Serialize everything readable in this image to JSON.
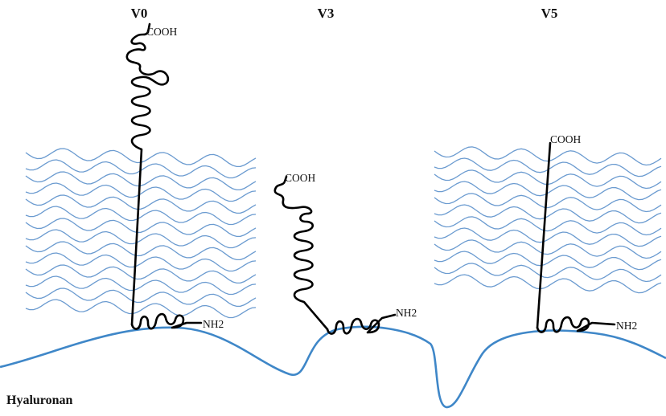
{
  "variants": [
    {
      "name": "V0",
      "c_terminus": "COOH",
      "n_terminus": "NH2",
      "gag_chains": 14
    },
    {
      "name": "V3",
      "c_terminus": "COOH",
      "n_terminus": "NH2",
      "gag_chains": 0
    },
    {
      "name": "V5",
      "c_terminus": "COOH",
      "n_terminus": "NH2",
      "gag_chains": 12
    }
  ],
  "base_label": "Hyaluronan",
  "colors": {
    "gag_chains": "#6b9bd0",
    "hyaluronan": "#3f87c8",
    "core_protein": "#000000"
  }
}
